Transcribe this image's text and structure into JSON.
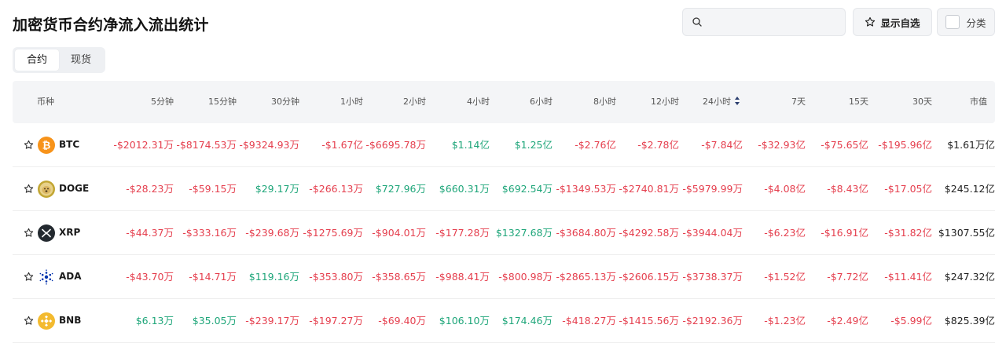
{
  "page": {
    "title": "加密货币合约净流入流出统计"
  },
  "toolbar": {
    "search_placeholder": "",
    "fav_label": "显示自选",
    "category_label": "分类"
  },
  "tabs": [
    {
      "label": "合约",
      "active": true
    },
    {
      "label": "现货",
      "active": false
    }
  ],
  "table": {
    "headers": {
      "coin": "币种",
      "cols": [
        "5分钟",
        "15分钟",
        "30分钟",
        "1小时",
        "2小时",
        "4小时",
        "6小时",
        "8小时",
        "12小时",
        "24小时",
        "7天",
        "15天",
        "30天",
        "市值"
      ]
    },
    "sorted_column": "24小时",
    "rows": [
      {
        "symbol": "BTC",
        "icon": "btc-icon",
        "values": [
          "-$2012.31万",
          "-$8174.53万",
          "-$9324.93万",
          "-$1.67亿",
          "-$6695.78万",
          "$1.14亿",
          "$1.25亿",
          "-$2.76亿",
          "-$2.78亿",
          "-$7.84亿",
          "-$32.93亿",
          "-$75.65亿",
          "-$195.96亿"
        ],
        "market_cap": "$1.61万亿"
      },
      {
        "symbol": "DOGE",
        "icon": "doge-icon",
        "values": [
          "-$28.23万",
          "-$59.15万",
          "$29.17万",
          "-$266.13万",
          "$727.96万",
          "$660.31万",
          "$692.54万",
          "-$1349.53万",
          "-$2740.81万",
          "-$5979.99万",
          "-$4.08亿",
          "-$8.43亿",
          "-$17.05亿"
        ],
        "market_cap": "$245.12亿"
      },
      {
        "symbol": "XRP",
        "icon": "xrp-icon",
        "values": [
          "-$44.37万",
          "-$333.16万",
          "-$239.68万",
          "-$1275.69万",
          "-$904.01万",
          "-$177.28万",
          "$1327.68万",
          "-$3684.80万",
          "-$4292.58万",
          "-$3944.04万",
          "-$6.23亿",
          "-$16.91亿",
          "-$31.82亿"
        ],
        "market_cap": "$1307.55亿"
      },
      {
        "symbol": "ADA",
        "icon": "ada-icon",
        "values": [
          "-$43.70万",
          "-$14.71万",
          "$119.16万",
          "-$353.80万",
          "-$358.65万",
          "-$988.41万",
          "-$800.98万",
          "-$2865.13万",
          "-$2606.15万",
          "-$3738.37万",
          "-$1.52亿",
          "-$7.72亿",
          "-$11.41亿"
        ],
        "market_cap": "$247.32亿"
      },
      {
        "symbol": "BNB",
        "icon": "bnb-icon",
        "values": [
          "$6.13万",
          "$35.05万",
          "-$239.17万",
          "-$197.27万",
          "-$69.40万",
          "$106.10万",
          "$174.46万",
          "-$418.27万",
          "-$1415.56万",
          "-$2192.36万",
          "-$1.23亿",
          "-$2.49亿",
          "-$5.99亿"
        ],
        "market_cap": "$825.39亿"
      }
    ]
  },
  "colors": {
    "negative": "#e5404f",
    "positive": "#1fa67a",
    "header_bg": "#f4f5f7"
  }
}
